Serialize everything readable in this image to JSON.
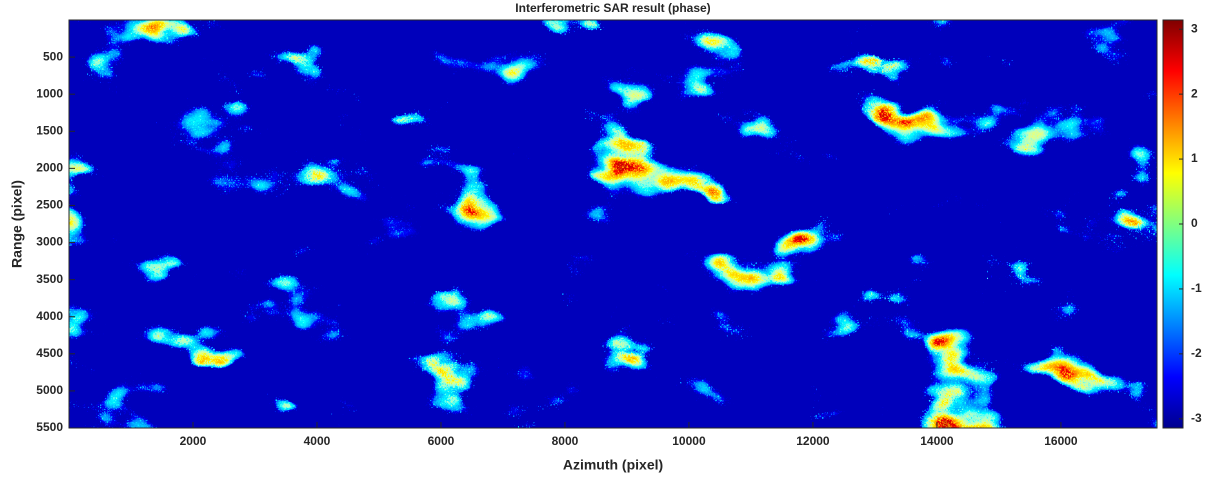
{
  "chart_data": {
    "type": "image",
    "title": "Interferometric SAR result (phase)",
    "xlabel": "Azimuth (pixel)",
    "ylabel": "Range (pixel)",
    "xlim": [
      0,
      17550
    ],
    "xticks": [
      2000,
      4000,
      6000,
      8000,
      10000,
      12000,
      14000,
      16000
    ],
    "ylim": [
      0,
      5500
    ],
    "y_reversed": true,
    "yticks": [
      500,
      1000,
      1500,
      2000,
      2500,
      3000,
      3500,
      4000,
      4500,
      5000,
      5500
    ],
    "colormap": "jet",
    "clim": [
      -3.1416,
      3.1416
    ],
    "cticks": [
      -3,
      -2,
      -1,
      0,
      1,
      2,
      3
    ]
  }
}
